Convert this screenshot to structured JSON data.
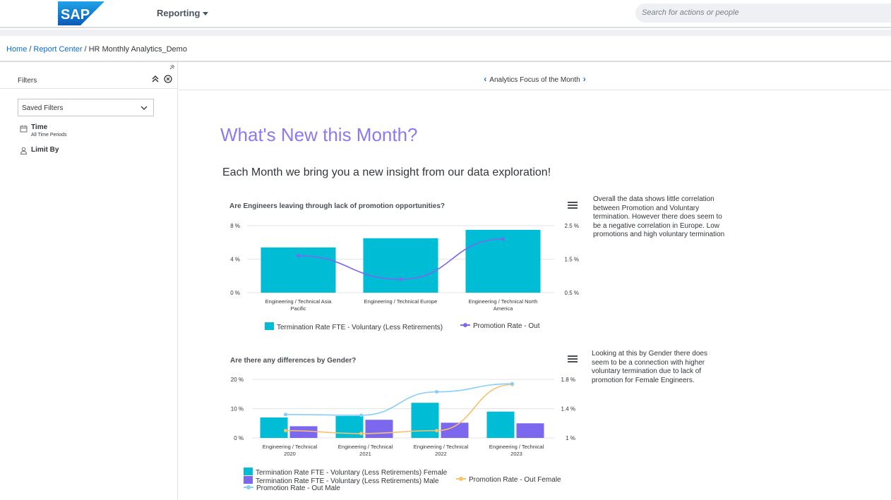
{
  "app": {
    "logo_text": "SAP",
    "menu_label": "Reporting",
    "search_placeholder": "Search for actions or people"
  },
  "breadcrumb": {
    "home": "Home",
    "report_center": "Report Center",
    "current": "HR Monthly Analytics_Demo",
    "separator": "/"
  },
  "filters": {
    "title": "Filters",
    "saved_filters_label": "Saved Filters",
    "time_label": "Time",
    "time_sub": "All Time Periods",
    "limit_label": "Limit By"
  },
  "focus": {
    "label": "Analytics Focus of the Month",
    "prev_glyph": "‹",
    "next_glyph": "›"
  },
  "content": {
    "headline": "What's New this Month?",
    "intro": "Each Month we bring you a new insight from our data exploration!",
    "note1": "Overall the data shows little correlation\nbetween Promotion and Voluntary\ntermination.  However there does seem to\nbe a negative correlation in Europe.  Low\npromotions and high voluntary termination",
    "note2": "Looking at this by Gender there does\nseem to be a connection with higher\nvoluntary termination due to lack of\npromotion for Female Engineers."
  },
  "colors": {
    "teal": "#00bcd4",
    "purple": "#7b68ee",
    "orange": "#f6c26b",
    "lightblue": "#87cefa",
    "headline": "#8b7af0",
    "link": "#0a6ed1"
  },
  "chart_data": [
    {
      "type": "bar",
      "title": "Are Engineers leaving through lack of promotion opportunities?",
      "categories": [
        "Engineering / Technical Asia Pacific",
        "Engineering / Technical Europe",
        "Engineering / Technical North America"
      ],
      "category_lines": [
        [
          "Engineering / Technical Asia",
          "Pacific"
        ],
        [
          "Engineering / Technical Europe"
        ],
        [
          "Engineering / Technical North",
          "America"
        ]
      ],
      "y_left": {
        "ticks": [
          "8 %",
          "4 %",
          "0 %"
        ],
        "range": [
          0,
          8
        ]
      },
      "y_right": {
        "ticks": [
          "2.5 %",
          "1.5 %",
          "0.5 %"
        ],
        "range": [
          0.5,
          2.5
        ]
      },
      "series": [
        {
          "name": "Termination Rate FTE - Voluntary (Less Retirements)",
          "kind": "bar",
          "axis": "left",
          "color": "#00bcd4",
          "values": [
            5.4,
            6.5,
            7.5
          ]
        },
        {
          "name": "Promotion Rate - Out",
          "kind": "line",
          "axis": "right",
          "color": "#7b68ee",
          "values": [
            1.6,
            0.9,
            2.1
          ]
        }
      ]
    },
    {
      "type": "bar",
      "title": "Are there any differences by Gender?",
      "categories": [
        "Engineering / Technical 2020",
        "Engineering / Technical 2021",
        "Engineering / Technical 2022",
        "Engineering / Technical 2023"
      ],
      "category_lines": [
        [
          "Engineering / Technical",
          "2020"
        ],
        [
          "Engineering / Technical",
          "2021"
        ],
        [
          "Engineering / Technical",
          "2022"
        ],
        [
          "Engineering / Technical",
          "2023"
        ]
      ],
      "y_left": {
        "ticks": [
          "20 %",
          "10 %",
          "0 %"
        ],
        "range": [
          0,
          20
        ]
      },
      "y_right": {
        "ticks": [
          "1.8 %",
          "1.4 %",
          "1 %"
        ],
        "range": [
          1.0,
          1.8
        ]
      },
      "series": [
        {
          "name": "Termination Rate FTE - Voluntary (Less Retirements) Female",
          "kind": "bar",
          "axis": "left",
          "color": "#00bcd4",
          "values": [
            7,
            7.5,
            12,
            9
          ]
        },
        {
          "name": "Termination Rate FTE - Voluntary (Less Retirements) Male",
          "kind": "bar",
          "axis": "left",
          "color": "#7b68ee",
          "values": [
            4,
            6.2,
            5.2,
            5
          ]
        },
        {
          "name": "Promotion Rate - Out Female",
          "kind": "line",
          "axis": "right",
          "color": "#f6c26b",
          "values": [
            1.1,
            1.06,
            1.1,
            1.73
          ]
        },
        {
          "name": "Promotion Rate - Out Male",
          "kind": "line",
          "axis": "right",
          "color": "#87cefa",
          "values": [
            1.32,
            1.31,
            1.63,
            1.74
          ]
        }
      ]
    }
  ]
}
